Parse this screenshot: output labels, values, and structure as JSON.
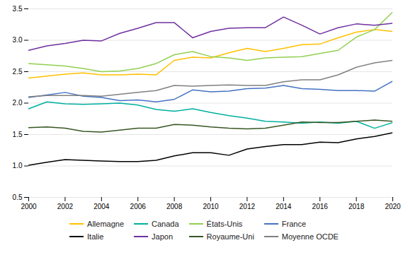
{
  "chart_data": {
    "type": "line",
    "x": [
      2000,
      2001,
      2002,
      2003,
      2004,
      2005,
      2006,
      2007,
      2008,
      2009,
      2010,
      2011,
      2012,
      2013,
      2014,
      2015,
      2016,
      2017,
      2018,
      2019,
      2020
    ],
    "series": [
      {
        "name": "Allemagne",
        "color": "#FFC000",
        "values": [
          2.4,
          2.43,
          2.46,
          2.48,
          2.45,
          2.45,
          2.46,
          2.45,
          2.68,
          2.73,
          2.72,
          2.8,
          2.87,
          2.82,
          2.87,
          2.93,
          2.94,
          3.04,
          3.13,
          3.17,
          3.14
        ]
      },
      {
        "name": "Canada",
        "color": "#00B0A0",
        "values": [
          1.91,
          2.02,
          1.99,
          1.98,
          1.99,
          2.0,
          1.97,
          1.9,
          1.87,
          1.91,
          1.85,
          1.8,
          1.76,
          1.71,
          1.7,
          1.68,
          1.7,
          1.68,
          1.71,
          1.6,
          1.69
        ]
      },
      {
        "name": "États-Unis",
        "color": "#92D050",
        "values": [
          2.63,
          2.61,
          2.59,
          2.55,
          2.5,
          2.51,
          2.55,
          2.63,
          2.77,
          2.82,
          2.74,
          2.72,
          2.68,
          2.72,
          2.73,
          2.74,
          2.79,
          2.84,
          3.05,
          3.17,
          3.45
        ]
      },
      {
        "name": "France",
        "color": "#4472C4",
        "values": [
          2.09,
          2.13,
          2.17,
          2.11,
          2.09,
          2.04,
          2.05,
          2.02,
          2.06,
          2.21,
          2.18,
          2.19,
          2.23,
          2.24,
          2.28,
          2.23,
          2.22,
          2.2,
          2.2,
          2.19,
          2.35
        ]
      },
      {
        "name": "Italie",
        "color": "#000000",
        "values": [
          1.01,
          1.06,
          1.1,
          1.09,
          1.08,
          1.07,
          1.07,
          1.09,
          1.16,
          1.21,
          1.21,
          1.17,
          1.27,
          1.31,
          1.34,
          1.34,
          1.38,
          1.37,
          1.43,
          1.47,
          1.53
        ]
      },
      {
        "name": "Japon",
        "color": "#7030A0",
        "values": [
          2.84,
          2.91,
          2.95,
          3.0,
          2.99,
          3.11,
          3.19,
          3.28,
          3.28,
          3.04,
          3.14,
          3.19,
          3.2,
          3.2,
          3.37,
          3.24,
          3.1,
          3.2,
          3.26,
          3.24,
          3.27
        ]
      },
      {
        "name": "Royaume-Uni",
        "color": "#375623",
        "values": [
          1.61,
          1.62,
          1.6,
          1.55,
          1.54,
          1.57,
          1.6,
          1.6,
          1.66,
          1.65,
          1.62,
          1.6,
          1.59,
          1.6,
          1.65,
          1.7,
          1.69,
          1.69,
          1.71,
          1.73,
          1.71
        ]
      },
      {
        "name": "Moyenne OCDE",
        "color": "#808080",
        "values": [
          2.1,
          2.12,
          2.12,
          2.12,
          2.11,
          2.14,
          2.17,
          2.2,
          2.28,
          2.27,
          2.28,
          2.29,
          2.28,
          2.28,
          2.34,
          2.37,
          2.37,
          2.45,
          2.57,
          2.64,
          2.68
        ]
      }
    ],
    "xlim": [
      2000,
      2020
    ],
    "xticks": [
      2000,
      2002,
      2004,
      2006,
      2008,
      2010,
      2012,
      2014,
      2016,
      2018,
      2020
    ],
    "ylim": [
      0.5,
      3.5
    ],
    "yticks": [
      0.5,
      {
        "value": 1.0,
        "label": "1.0"
      },
      1.5,
      {
        "value": 2.0,
        "label": "2.0"
      },
      2.5,
      {
        "value": 3.0,
        "label": "3.0"
      },
      3.5
    ],
    "grid": true,
    "legend": "bottom"
  }
}
